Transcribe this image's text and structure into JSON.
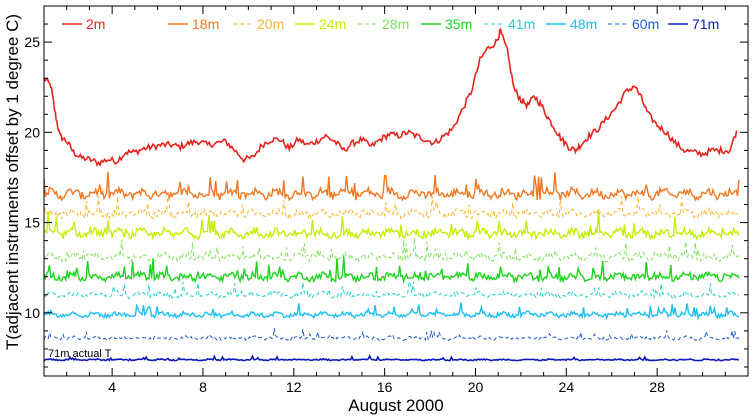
{
  "chart_data": {
    "type": "line",
    "xlabel": "August 2000",
    "ylabel": "T(adjacent instruments offset by 1 degree C)",
    "xlim": [
      1,
      32
    ],
    "ylim": [
      6.5,
      27
    ],
    "x_ticks": [
      4,
      8,
      12,
      16,
      20,
      24,
      28
    ],
    "y_ticks": [
      10,
      15,
      20,
      25
    ],
    "grid": false,
    "legend_position": "top",
    "annotation": "71m actual T",
    "series": [
      {
        "name": "2m",
        "color": "#e8231e",
        "dash": "solid",
        "width": 1.6,
        "points": [
          [
            1.0,
            23.0
          ],
          [
            1.3,
            22.6
          ],
          [
            1.5,
            21.0
          ],
          [
            1.7,
            19.8
          ],
          [
            2.0,
            19.5
          ],
          [
            2.3,
            18.9
          ],
          [
            2.6,
            18.6
          ],
          [
            3.0,
            18.5
          ],
          [
            3.4,
            18.3
          ],
          [
            3.8,
            18.5
          ],
          [
            4.2,
            18.4
          ],
          [
            4.6,
            18.9
          ],
          [
            5.0,
            18.9
          ],
          [
            5.4,
            19.1
          ],
          [
            5.8,
            19.2
          ],
          [
            6.2,
            19.3
          ],
          [
            6.6,
            19.3
          ],
          [
            7.0,
            19.2
          ],
          [
            7.4,
            19.4
          ],
          [
            7.8,
            19.5
          ],
          [
            8.2,
            19.3
          ],
          [
            8.6,
            19.4
          ],
          [
            9.0,
            19.5
          ],
          [
            9.4,
            19.0
          ],
          [
            9.8,
            18.5
          ],
          [
            10.2,
            18.6
          ],
          [
            10.6,
            19.3
          ],
          [
            11.0,
            19.6
          ],
          [
            11.4,
            19.6
          ],
          [
            11.8,
            19.1
          ],
          [
            12.2,
            19.6
          ],
          [
            12.6,
            19.3
          ],
          [
            13.0,
            19.5
          ],
          [
            13.4,
            19.8
          ],
          [
            13.8,
            19.5
          ],
          [
            14.2,
            19.0
          ],
          [
            14.6,
            19.4
          ],
          [
            15.0,
            19.6
          ],
          [
            15.4,
            19.2
          ],
          [
            15.8,
            19.6
          ],
          [
            16.2,
            19.9
          ],
          [
            16.6,
            19.8
          ],
          [
            17.0,
            20.0
          ],
          [
            17.4,
            19.8
          ],
          [
            17.8,
            19.6
          ],
          [
            18.2,
            19.4
          ],
          [
            18.6,
            19.8
          ],
          [
            19.0,
            20.2
          ],
          [
            19.4,
            21.2
          ],
          [
            19.8,
            22.2
          ],
          [
            20.2,
            24.0
          ],
          [
            20.5,
            24.6
          ],
          [
            20.9,
            25.0
          ],
          [
            21.1,
            25.6
          ],
          [
            21.4,
            24.5
          ],
          [
            21.7,
            22.4
          ],
          [
            22.0,
            21.8
          ],
          [
            22.3,
            21.5
          ],
          [
            22.6,
            22.0
          ],
          [
            22.9,
            21.5
          ],
          [
            23.2,
            20.8
          ],
          [
            23.5,
            20.2
          ],
          [
            23.8,
            19.6
          ],
          [
            24.1,
            19.2
          ],
          [
            24.4,
            19.0
          ],
          [
            24.7,
            19.4
          ],
          [
            25.0,
            19.8
          ],
          [
            25.4,
            20.2
          ],
          [
            25.8,
            20.8
          ],
          [
            26.2,
            21.4
          ],
          [
            26.6,
            22.2
          ],
          [
            27.0,
            22.6
          ],
          [
            27.3,
            21.9
          ],
          [
            27.6,
            21.0
          ],
          [
            28.0,
            20.4
          ],
          [
            28.4,
            20.0
          ],
          [
            28.8,
            19.4
          ],
          [
            29.2,
            19.0
          ],
          [
            29.6,
            18.9
          ],
          [
            30.0,
            18.8
          ],
          [
            30.4,
            19.0
          ],
          [
            30.8,
            19.0
          ],
          [
            31.2,
            19.0
          ],
          [
            31.5,
            20.1
          ]
        ]
      },
      {
        "name": "18m",
        "color": "#f07822",
        "dash": "solid",
        "width": 1.4,
        "base": 16.6,
        "noise": 0.55
      },
      {
        "name": "20m",
        "color": "#ffb52b",
        "dash": "4,3",
        "width": 1.0,
        "base": 15.5,
        "noise": 0.45
      },
      {
        "name": "24m",
        "color": "#c2f000",
        "dash": "solid",
        "width": 1.4,
        "base": 14.4,
        "noise": 0.5
      },
      {
        "name": "28m",
        "color": "#7fe05a",
        "dash": "4,3",
        "width": 1.0,
        "base": 13.1,
        "noise": 0.45
      },
      {
        "name": "35m",
        "color": "#1fd31f",
        "dash": "solid",
        "width": 1.4,
        "base": 12.0,
        "noise": 0.45
      },
      {
        "name": "41m",
        "color": "#20d2c8",
        "dash": "4,3",
        "width": 1.0,
        "base": 11.0,
        "noise": 0.3
      },
      {
        "name": "48m",
        "color": "#1ec0f0",
        "dash": "solid",
        "width": 1.4,
        "base": 9.9,
        "noise": 0.3
      },
      {
        "name": "60m",
        "color": "#1f5ec8",
        "dash": "4,3",
        "width": 1.0,
        "base": 8.6,
        "noise": 0.2
      },
      {
        "name": "71m",
        "color": "#0c19b8",
        "dash": "solid",
        "width": 1.6,
        "base": 7.4,
        "noise": 0.08
      }
    ]
  }
}
